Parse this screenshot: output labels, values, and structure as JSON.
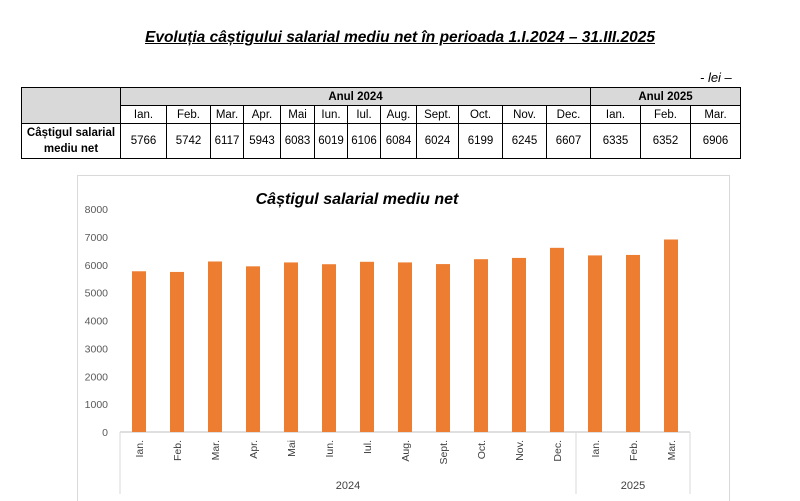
{
  "header": {
    "title": "Evoluția câștigului salarial mediu net în perioada 1.I.2024 – 31.III.2025",
    "unit": "- lei –"
  },
  "table": {
    "row_label_line1": "Câștigul salarial",
    "row_label_line2": "mediu net",
    "years": [
      {
        "label": "Anul 2024",
        "months": [
          "Ian.",
          "Feb.",
          "Mar.",
          "Apr.",
          "Mai",
          "Iun.",
          "Iul.",
          "Aug.",
          "Sept.",
          "Oct.",
          "Nov.",
          "Dec."
        ]
      },
      {
        "label": "Anul 2025",
        "months": [
          "Ian.",
          "Feb.",
          "Mar."
        ]
      }
    ],
    "values": [
      "5766",
      "5742",
      "6117",
      "5943",
      "6083",
      "6019",
      "6106",
      "6084",
      "6024",
      "6199",
      "6245",
      "6607",
      "6335",
      "6352",
      "6906"
    ]
  },
  "chart_data": {
    "type": "bar",
    "title": "Câștigul salarial mediu net",
    "categories": [
      "Ian.",
      "Feb.",
      "Mar.",
      "Apr.",
      "Mai",
      "Iun.",
      "Iul.",
      "Aug.",
      "Sept.",
      "Oct.",
      "Nov.",
      "Dec.",
      "Ian.",
      "Feb.",
      "Mar."
    ],
    "groups": [
      {
        "label": "2024",
        "count": 12
      },
      {
        "label": "2025",
        "count": 3
      }
    ],
    "values": [
      5766,
      5742,
      6117,
      5943,
      6083,
      6019,
      6106,
      6084,
      6024,
      6199,
      6245,
      6607,
      6335,
      6352,
      6906
    ],
    "ylim": [
      0,
      8000
    ],
    "yticks": [
      0,
      1000,
      2000,
      3000,
      4000,
      5000,
      6000,
      7000,
      8000
    ],
    "grid": false,
    "legend": "none",
    "bar_color": "#ed7d31"
  }
}
